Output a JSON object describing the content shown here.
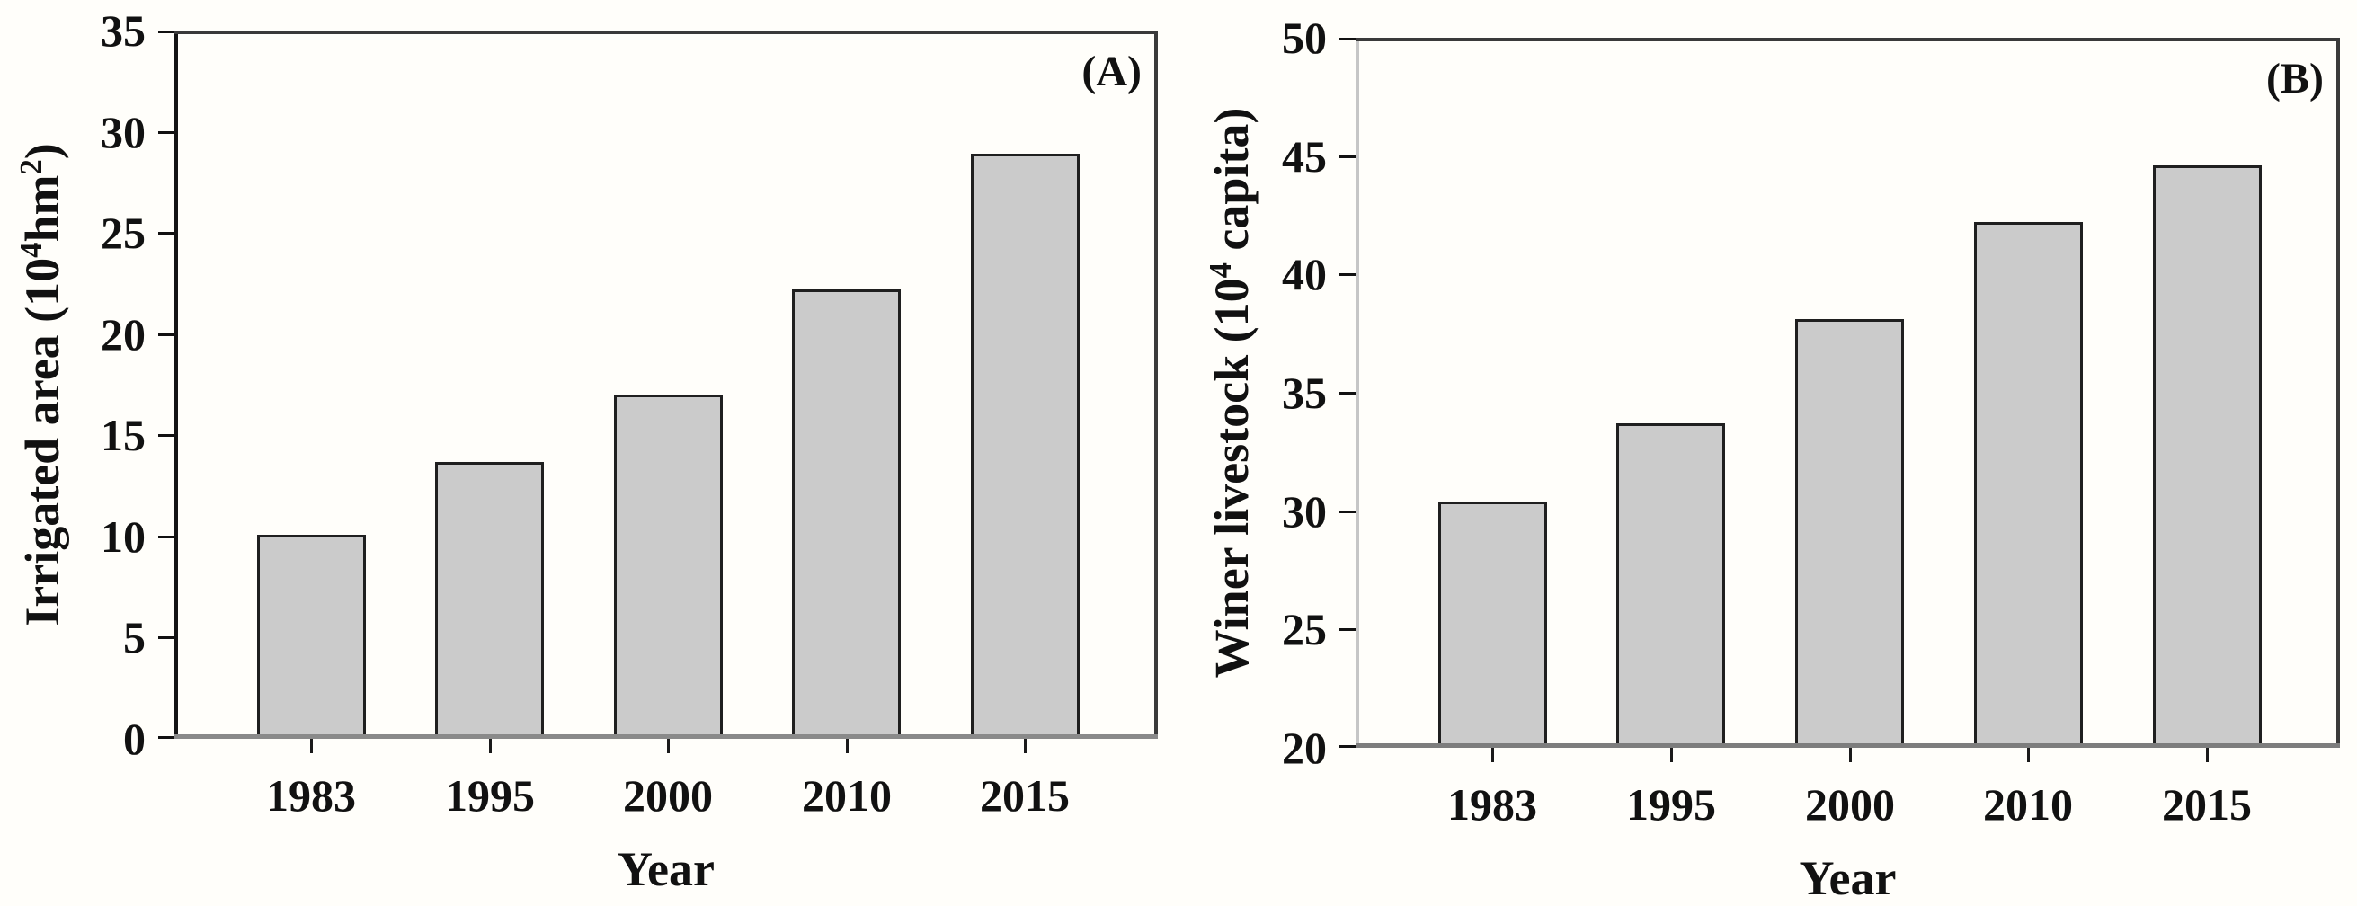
{
  "figure": {
    "background": "#fffefa",
    "text_color": "#111111"
  },
  "chart_data": [
    {
      "type": "bar",
      "panel_label": "(A)",
      "ylabel": "Irrigated area (10^4 hm^2)",
      "ylabel_parts": [
        {
          "text": "Irrigated area (10"
        },
        {
          "text": "4",
          "sup": true
        },
        {
          "text": "hm"
        },
        {
          "text": "2",
          "sup": true
        },
        {
          "text": ")"
        }
      ],
      "xlabel": "Year",
      "categories": [
        "1983",
        "1995",
        "2000",
        "2010",
        "2015"
      ],
      "values": [
        10.1,
        13.7,
        17.0,
        22.2,
        28.9
      ],
      "ylim": [
        0,
        35
      ],
      "yticks": [
        0,
        5,
        10,
        15,
        20,
        25,
        30,
        35
      ],
      "grid": false,
      "legend": null,
      "bar_fill": "#cbcbcb",
      "bar_border": "#1f1f1f"
    },
    {
      "type": "bar",
      "panel_label": "(B)",
      "ylabel": "Winer livestock (10^4 capita)",
      "ylabel_parts": [
        {
          "text": "Winer livestock (10"
        },
        {
          "text": "4",
          "sup": true
        },
        {
          "text": " capita)"
        }
      ],
      "xlabel": "Year",
      "categories": [
        "1983",
        "1995",
        "2000",
        "2010",
        "2015"
      ],
      "values": [
        30.4,
        33.7,
        38.1,
        42.2,
        44.6
      ],
      "ylim": [
        20,
        50
      ],
      "yticks": [
        20,
        25,
        30,
        35,
        40,
        45,
        50
      ],
      "grid": false,
      "legend": null,
      "bar_fill": "#cbcbcb",
      "bar_border": "#1f1f1f"
    }
  ]
}
